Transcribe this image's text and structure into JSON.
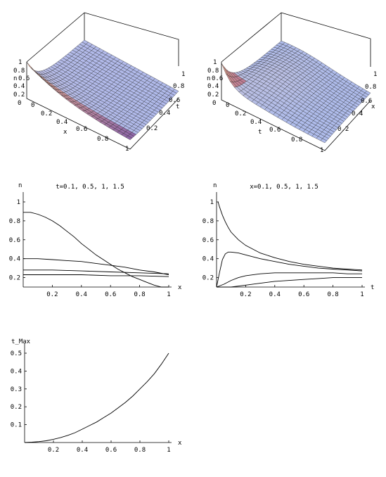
{
  "chart_data": [
    {
      "type": "surface",
      "id": "surface-1",
      "xlabel": "x",
      "ylabel": "t",
      "zlabel": "n",
      "x_ticks": [
        "0",
        "0.2",
        "0.4",
        "0.6",
        "0.8",
        "1"
      ],
      "t_ticks": [
        "0.2",
        "0.4",
        "0.6",
        "0.8",
        "1"
      ],
      "z_ticks": [
        "0",
        "0.2",
        "0.4",
        "0.6",
        "0.8",
        "1"
      ]
    },
    {
      "type": "surface",
      "id": "surface-2",
      "xlabel": "t",
      "ylabel": "x",
      "zlabel": "n",
      "t_ticks": [
        "0",
        "0.2",
        "0.4",
        "0.6",
        "0.8",
        "1"
      ],
      "x_ticks": [
        "0.2",
        "0.4",
        "0.6",
        "0.8",
        "1"
      ],
      "z_ticks": [
        "0",
        "0.2",
        "0.4",
        "0.6",
        "0.8",
        "1"
      ]
    },
    {
      "type": "line",
      "id": "line-1",
      "title": "t=0.1, 0.5, 1, 1.5",
      "xlabel": "x",
      "ylabel": "n",
      "xlim": [
        0,
        1
      ],
      "ylim": [
        0.1,
        1
      ],
      "x_ticks": [
        0.2,
        0.4,
        0.6,
        0.8,
        1
      ],
      "y_ticks": [
        0.2,
        0.4,
        0.6,
        0.8,
        1
      ],
      "series": [
        {
          "x": [
            0,
            0.05,
            0.1,
            0.15,
            0.2,
            0.25,
            0.3,
            0.35,
            0.4,
            0.45,
            0.5,
            0.55,
            0.6,
            0.65,
            0.7,
            0.75,
            0.8,
            0.85,
            0.9,
            0.95,
            1
          ],
          "y": [
            0.89,
            0.89,
            0.87,
            0.84,
            0.8,
            0.75,
            0.69,
            0.63,
            0.56,
            0.5,
            0.44,
            0.39,
            0.34,
            0.29,
            0.25,
            0.21,
            0.18,
            0.15,
            0.12,
            0.09,
            0.07
          ]
        },
        {
          "x": [
            0,
            0.1,
            0.2,
            0.3,
            0.4,
            0.5,
            0.6,
            0.7,
            0.8,
            0.9,
            1
          ],
          "y": [
            0.4,
            0.4,
            0.39,
            0.38,
            0.37,
            0.35,
            0.33,
            0.31,
            0.28,
            0.26,
            0.23
          ]
        },
        {
          "x": [
            0,
            0.2,
            0.4,
            0.6,
            0.8,
            1
          ],
          "y": [
            0.28,
            0.28,
            0.27,
            0.26,
            0.25,
            0.24
          ]
        },
        {
          "x": [
            0,
            0.2,
            0.4,
            0.6,
            0.8,
            1
          ],
          "y": [
            0.23,
            0.23,
            0.23,
            0.22,
            0.22,
            0.21
          ]
        }
      ]
    },
    {
      "type": "line",
      "id": "line-2",
      "title": "x=0.1, 0.5, 1, 1.5",
      "xlabel": "t",
      "ylabel": "n",
      "xlim": [
        0,
        1
      ],
      "ylim": [
        0.1,
        1
      ],
      "x_ticks": [
        0.2,
        0.4,
        0.6,
        0.8,
        1
      ],
      "y_ticks": [
        0.2,
        0.4,
        0.6,
        0.8,
        1
      ],
      "series": [
        {
          "x": [
            0.01,
            0.02,
            0.04,
            0.06,
            0.08,
            0.1,
            0.15,
            0.2,
            0.3,
            0.4,
            0.5,
            0.6,
            0.7,
            0.8,
            0.9,
            1
          ],
          "y": [
            1.0,
            0.95,
            0.86,
            0.79,
            0.73,
            0.68,
            0.6,
            0.54,
            0.46,
            0.41,
            0.37,
            0.34,
            0.32,
            0.3,
            0.29,
            0.28
          ]
        },
        {
          "x": [
            0,
            0.02,
            0.04,
            0.06,
            0.08,
            0.1,
            0.15,
            0.2,
            0.3,
            0.4,
            0.5,
            0.6,
            0.7,
            0.8,
            0.9,
            1
          ],
          "y": [
            0.1,
            0.25,
            0.39,
            0.45,
            0.47,
            0.47,
            0.46,
            0.44,
            0.4,
            0.37,
            0.34,
            0.32,
            0.3,
            0.29,
            0.28,
            0.27
          ]
        },
        {
          "x": [
            0,
            0.05,
            0.1,
            0.15,
            0.2,
            0.3,
            0.4,
            0.5,
            0.6,
            0.7,
            0.8,
            0.9,
            1
          ],
          "y": [
            0.1,
            0.13,
            0.17,
            0.2,
            0.22,
            0.24,
            0.25,
            0.25,
            0.25,
            0.25,
            0.25,
            0.24,
            0.24
          ]
        },
        {
          "x": [
            0,
            0.1,
            0.2,
            0.3,
            0.4,
            0.5,
            0.6,
            0.7,
            0.8,
            0.9,
            1
          ],
          "y": [
            0.1,
            0.1,
            0.12,
            0.14,
            0.16,
            0.17,
            0.18,
            0.19,
            0.2,
            0.2,
            0.2
          ]
        }
      ]
    },
    {
      "type": "line",
      "id": "line-3",
      "xlabel": "x",
      "ylabel": "t_Max",
      "xlim": [
        0,
        1
      ],
      "ylim": [
        0,
        0.5
      ],
      "x_ticks": [
        0.2,
        0.4,
        0.6,
        0.8,
        1
      ],
      "y_ticks": [
        0.1,
        0.2,
        0.3,
        0.4,
        0.5
      ],
      "series": [
        {
          "x": [
            0,
            0.05,
            0.1,
            0.15,
            0.2,
            0.25,
            0.3,
            0.35,
            0.4,
            0.45,
            0.5,
            0.55,
            0.6,
            0.65,
            0.7,
            0.75,
            0.8,
            0.85,
            0.9,
            0.95,
            1
          ],
          "y": [
            0,
            0.002,
            0.005,
            0.01,
            0.018,
            0.028,
            0.04,
            0.055,
            0.075,
            0.095,
            0.115,
            0.14,
            0.165,
            0.195,
            0.225,
            0.26,
            0.3,
            0.34,
            0.385,
            0.44,
            0.5
          ]
        }
      ]
    }
  ]
}
